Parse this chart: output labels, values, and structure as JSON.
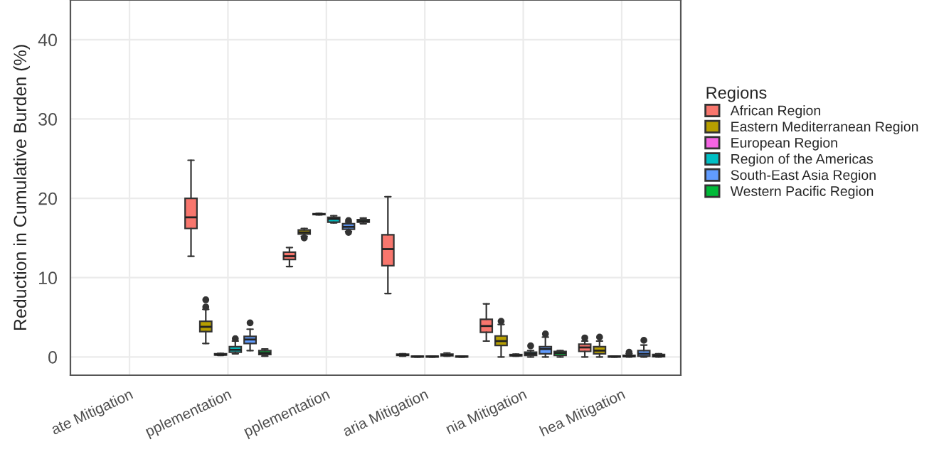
{
  "chart_data": {
    "type": "box",
    "ylabel": "Reduction in Cumulative Burden (%)",
    "legend_title": "Regions",
    "legend": "right",
    "grid": true,
    "categories": [
      "ate Mitigation",
      "pplementation",
      "pplementation",
      "aria Mitigation",
      "nia Mitigation",
      "hea Mitigation"
    ],
    "ylim": [
      -2.3,
      45
    ],
    "yticks": [
      0,
      10,
      20,
      30,
      40
    ],
    "series": [
      {
        "name": "African Region",
        "color": "#f8766d",
        "boxes": [
          null,
          {
            "low": 12.7,
            "q1": 16.2,
            "median": 17.6,
            "q3": 20,
            "high": 24.8
          },
          {
            "low": 11.4,
            "q1": 12.3,
            "median": 12.7,
            "q3": 13.2,
            "high": 13.8
          },
          {
            "low": 8,
            "q1": 11.5,
            "median": 13.6,
            "q3": 15.4,
            "high": 20.2
          },
          {
            "low": 2.0,
            "q1": 3.1,
            "median": 3.9,
            "q3": 4.75,
            "high": 6.7
          },
          {
            "low": 0,
            "q1": 0.7,
            "median": 1.2,
            "q3": 1.6,
            "high": 2.0,
            "outliers": [
              2.4
            ]
          }
        ]
      },
      {
        "name": "Eastern Mediterranean Region",
        "color": "#b79f00",
        "boxes": [
          null,
          {
            "low": 1.7,
            "q1": 3.2,
            "median": 3.8,
            "q3": 4.5,
            "high": 6,
            "outliers": [
              6.3,
              7.2
            ]
          },
          {
            "low": 15.2,
            "q1": 15.5,
            "median": 15.7,
            "q3": 16.0,
            "high": 16.2,
            "outliers": [
              15.0
            ]
          },
          {
            "low": 0.1,
            "q1": 0.2,
            "median": 0.25,
            "q3": 0.35,
            "high": 0.4
          },
          {
            "low": 0,
            "q1": 1.45,
            "median": 2.0,
            "q3": 2.65,
            "high": 4.1,
            "outliers": [
              4.5
            ]
          },
          {
            "low": 0,
            "q1": 0.4,
            "median": 0.8,
            "q3": 1.3,
            "high": 2.0,
            "outliers": [
              2.5
            ]
          }
        ]
      },
      {
        "name": "European Region",
        "color": "#f564e3",
        "boxes": [
          null,
          {
            "low": 0.2,
            "q1": 0.25,
            "median": 0.3,
            "q3": 0.4,
            "high": 0.45
          },
          {
            "low": 17.9,
            "q1": 17.95,
            "median": 18.0,
            "q3": 18.05,
            "high": 18.1
          },
          {
            "low": 0,
            "q1": 0,
            "median": 0.05,
            "q3": 0.1,
            "high": 0.1
          },
          {
            "low": 0.1,
            "q1": 0.15,
            "median": 0.2,
            "q3": 0.3,
            "high": 0.35
          },
          {
            "low": 0,
            "q1": 0,
            "median": 0.05,
            "q3": 0.1,
            "high": 0.1
          }
        ]
      },
      {
        "name": "Region of the Americas",
        "color": "#00bfc4",
        "boxes": [
          null,
          {
            "low": 0.4,
            "q1": 0.6,
            "median": 0.9,
            "q3": 1.3,
            "high": 2.0,
            "outliers": [
              2.3
            ]
          },
          {
            "low": 16.9,
            "q1": 17.0,
            "median": 17.4,
            "q3": 17.6,
            "high": 17.8
          },
          {
            "low": 0,
            "q1": 0,
            "median": 0.05,
            "q3": 0.1,
            "high": 0.1
          },
          {
            "low": 0,
            "q1": 0.2,
            "median": 0.4,
            "q3": 0.6,
            "high": 0.8,
            "outliers": [
              1.4
            ]
          },
          {
            "low": 0,
            "q1": 0.05,
            "median": 0.1,
            "q3": 0.2,
            "high": 0.4,
            "outliers": [
              0.6
            ]
          }
        ]
      },
      {
        "name": "South-East Asia Region",
        "color": "#619cff",
        "boxes": [
          null,
          {
            "low": 0.8,
            "q1": 1.7,
            "median": 2.2,
            "q3": 2.6,
            "high": 3.5,
            "outliers": [
              4.3
            ]
          },
          {
            "low": 15.8,
            "q1": 16.1,
            "median": 16.4,
            "q3": 16.8,
            "high": 17.0,
            "outliers": [
              15.7,
              17.2
            ]
          },
          {
            "low": 0.1,
            "q1": 0.15,
            "median": 0.25,
            "q3": 0.35,
            "high": 0.5
          },
          {
            "low": 0,
            "q1": 0.4,
            "median": 1.0,
            "q3": 1.3,
            "high": 2.5,
            "outliers": [
              2.9
            ]
          },
          {
            "low": 0,
            "q1": 0.1,
            "median": 0.4,
            "q3": 0.8,
            "high": 1.5,
            "outliers": [
              2.1
            ]
          }
        ]
      },
      {
        "name": "Western Pacific Region",
        "color": "#00ba38",
        "boxes": [
          null,
          {
            "low": 0.1,
            "q1": 0.3,
            "median": 0.5,
            "q3": 0.8,
            "high": 1.0
          },
          {
            "low": 16.8,
            "q1": 17.0,
            "median": 17.1,
            "q3": 17.3,
            "high": 17.5
          },
          {
            "low": 0,
            "q1": 0,
            "median": 0.05,
            "q3": 0.1,
            "high": 0.1
          },
          {
            "low": 0,
            "q1": 0.2,
            "median": 0.5,
            "q3": 0.7,
            "high": 0.8
          },
          {
            "low": 0,
            "q1": 0.05,
            "median": 0.15,
            "q3": 0.3,
            "high": 0.4
          }
        ]
      }
    ]
  }
}
